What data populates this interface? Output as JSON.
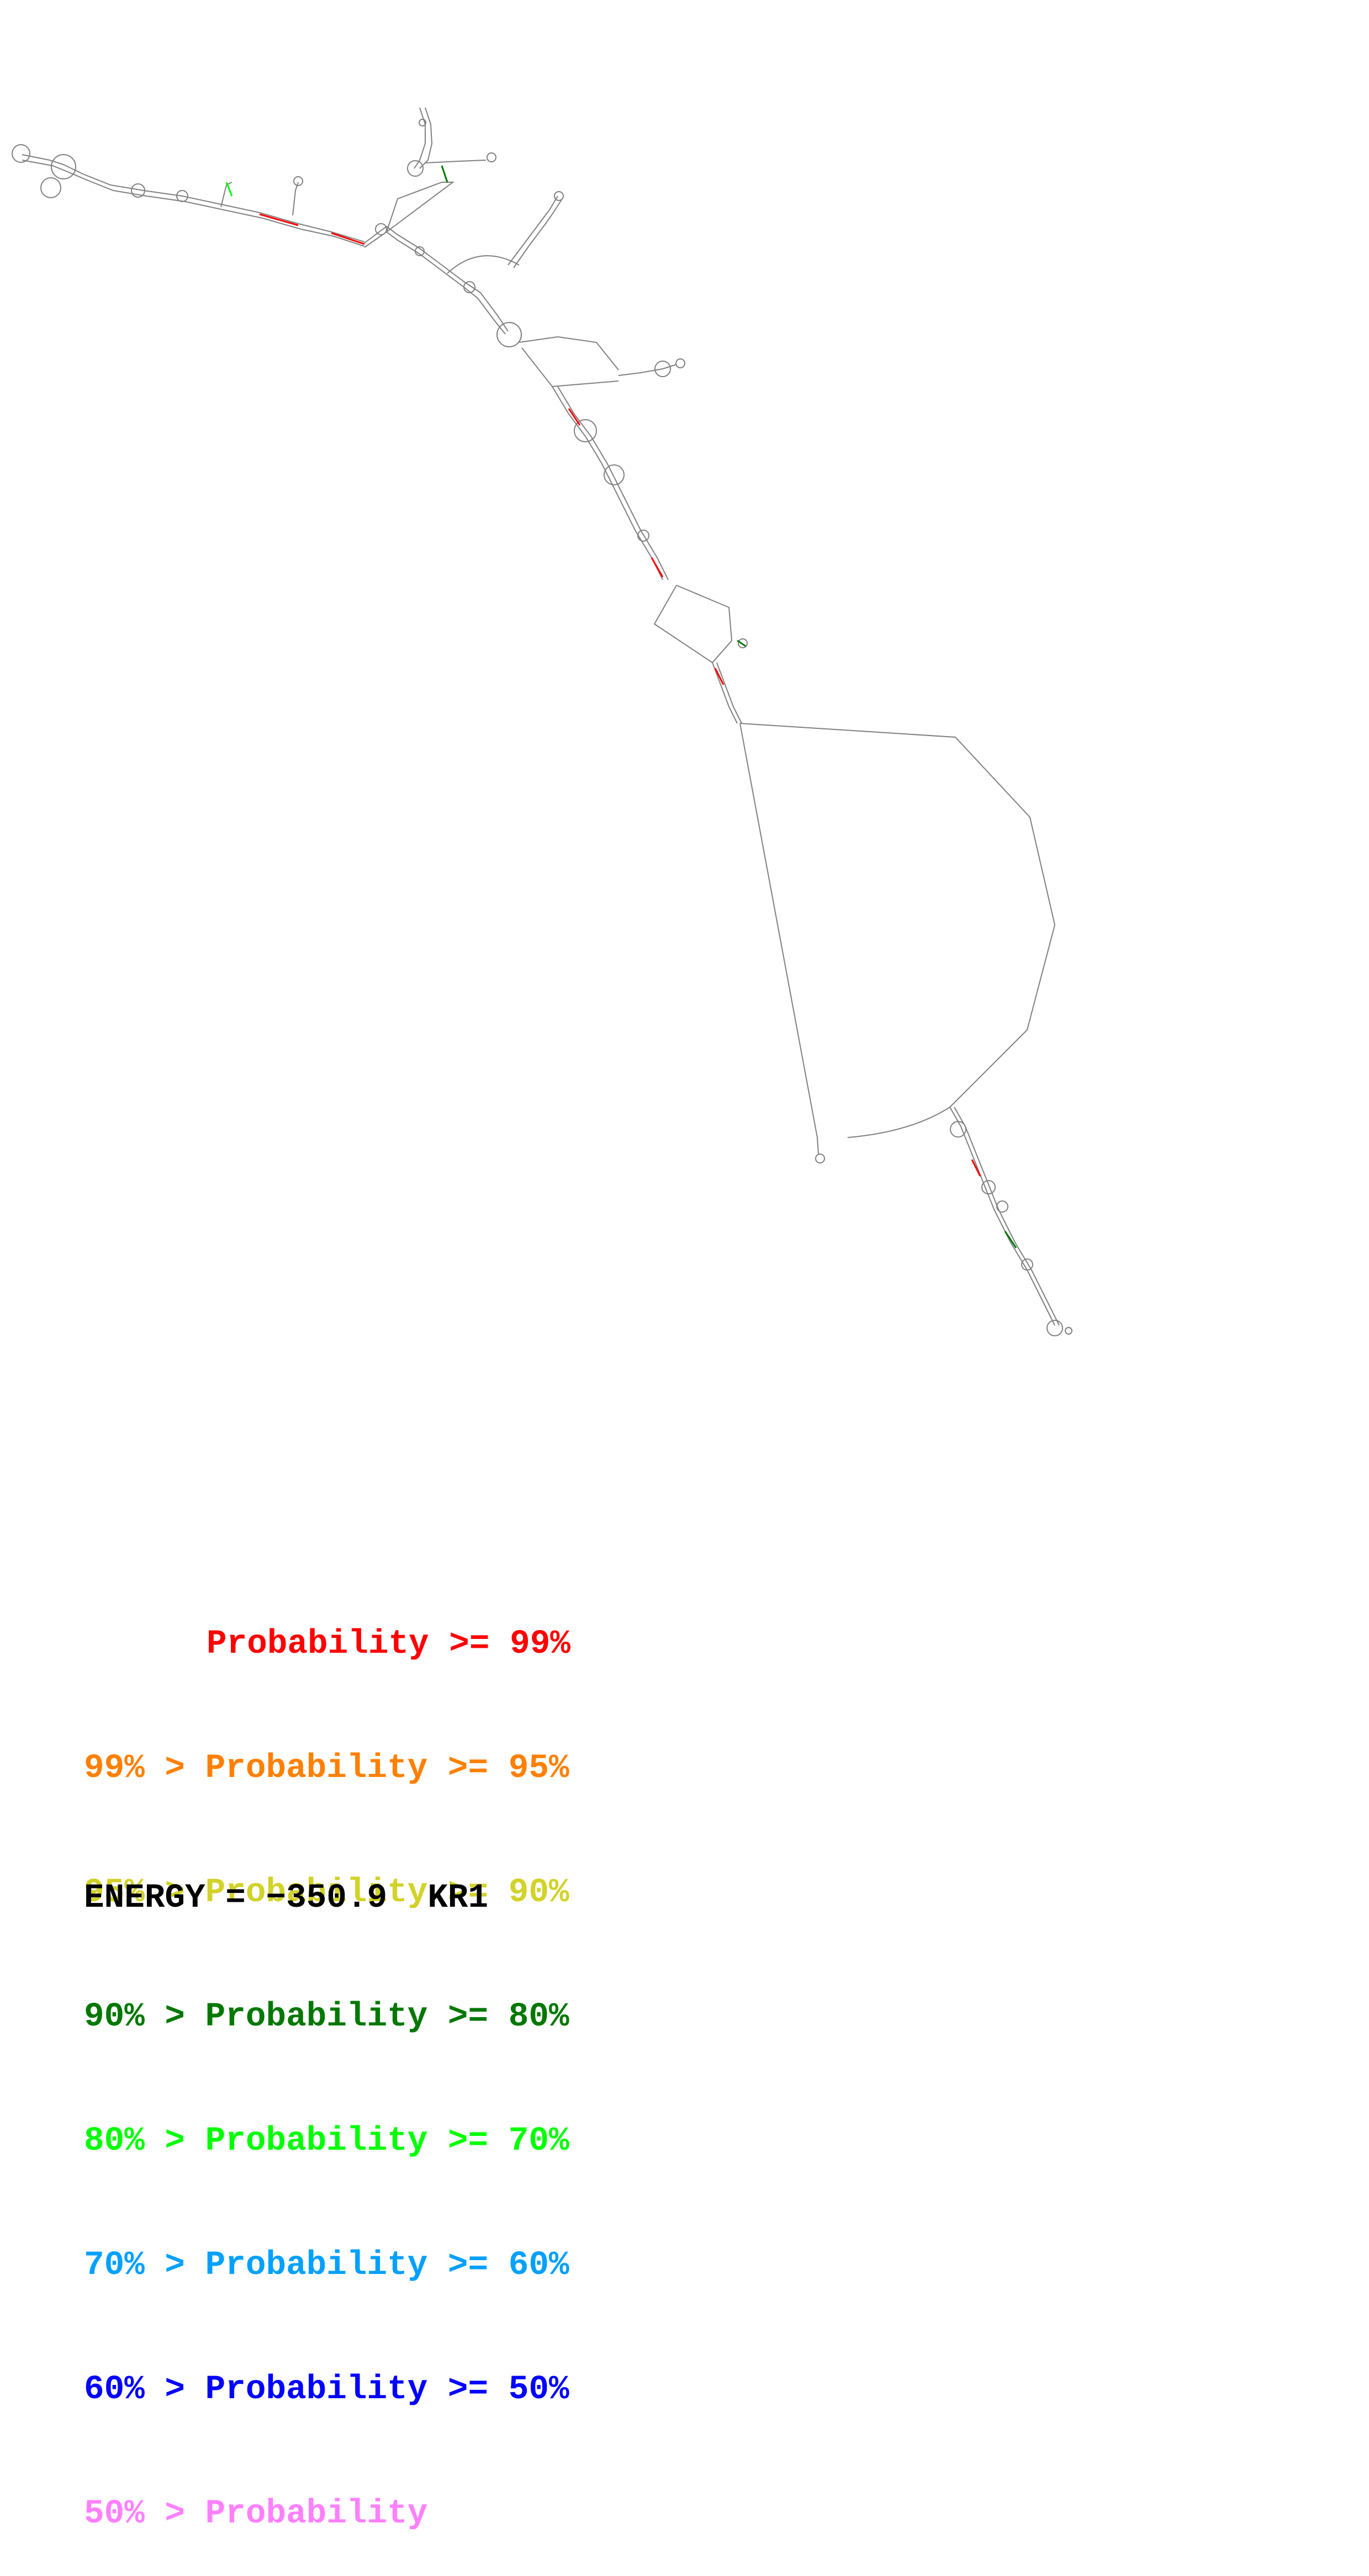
{
  "legend": [
    {
      "prefix": "",
      "text": "Probability >= 99%",
      "color": "#ff0000"
    },
    {
      "prefix": "99% > ",
      "text": "Probability >= 95%",
      "color": "#ff8000"
    },
    {
      "prefix": "95% > ",
      "text": "Probability >= 90%",
      "color": "#d2d22a"
    },
    {
      "prefix": "90% > ",
      "text": "Probability >= 80%",
      "color": "#007800"
    },
    {
      "prefix": "80% > ",
      "text": "Probability >= 70%",
      "color": "#00ff00"
    },
    {
      "prefix": "70% > ",
      "text": "Probability >= 60%",
      "color": "#00a0ff"
    },
    {
      "prefix": "60% > ",
      "text": "Probability >= 50%",
      "color": "#0000ff"
    },
    {
      "prefix": "50% > ",
      "text": "Probability",
      "color": "#ff80ff"
    }
  ],
  "energy": {
    "label": "ENERGY = ",
    "value": "−350.9",
    "name": "KR1"
  },
  "colors": {
    "backbone": "#808080",
    "pair_high": "#ff0000",
    "pair_mid": "#007800",
    "pair_low": "#808080"
  }
}
